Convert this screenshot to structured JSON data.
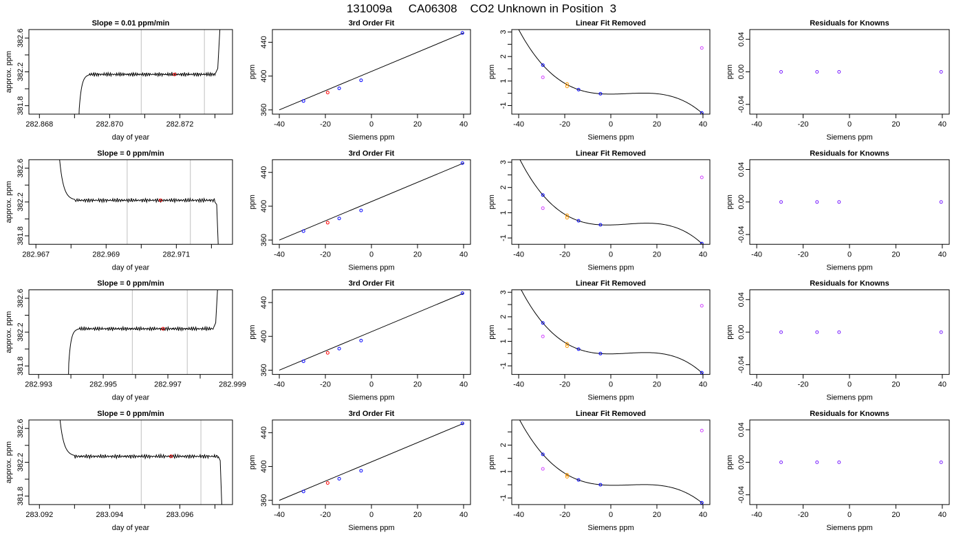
{
  "title": "131009a     CA06308    CO2 Unknown in Position  3",
  "chart_data": {
    "type": "multi-panel",
    "rows": [
      {
        "trace": {
          "title": "Slope =  0.01  ppm/min",
          "xlabel": "day of year",
          "ylabel": "approx. ppm",
          "xlim": [
            282.8677,
            282.8735
          ],
          "ylim": [
            381.7,
            382.7
          ],
          "xticks": [
            282.868,
            282.87,
            282.872
          ],
          "xtick_labels": [
            "282.868",
            "282.870",
            "282.872"
          ],
          "yticks": [
            381.8,
            382.2,
            382.6
          ],
          "ytick_labels": [
            "381.8",
            "382.2",
            "382.6"
          ],
          "flat_start": 282.8694,
          "flat_end": 282.873,
          "level": 382.17,
          "vlines": [
            282.8709,
            282.8727
          ],
          "marker": [
            282.87185,
            382.17
          ],
          "rise_before": true,
          "rise_after": true,
          "fall_after": false
        },
        "fit": {
          "title": "3rd Order Fit",
          "xlabel": "Siemens ppm",
          "ylabel": "ppm",
          "xlim": [
            -43,
            43
          ],
          "ylim": [
            355,
            455
          ],
          "xticks": [
            -40,
            -20,
            0,
            20,
            40
          ],
          "yticks": [
            360,
            400,
            440
          ],
          "points": [
            [
              -29.5,
              370.5
            ],
            [
              -14,
              385.5
            ],
            [
              -4.5,
              395
            ],
            [
              39.5,
              451
            ]
          ],
          "red_point": [
            -19,
            380.5
          ],
          "line": [
            [
              -40,
              360
            ],
            [
              40,
              451
            ]
          ]
        },
        "linear_removed": {
          "title": "Linear Fit Removed",
          "xlabel": "Siemens ppm",
          "ylabel": "ppm",
          "xlim": [
            -43,
            43
          ],
          "ylim": [
            -0.85,
            2.6
          ],
          "xticks": [
            -40,
            -20,
            0,
            20,
            40
          ],
          "yticks": [
            -0.5,
            0.5,
            1.5,
            2.5
          ],
          "blue": [
            [
              -29.5,
              1.15
            ],
            [
              -14,
              0.15
            ],
            [
              -4.5,
              -0.02
            ],
            [
              39.5,
              -0.8
            ]
          ],
          "magenta": [
            [
              -29.5,
              0.65
            ],
            [
              39.5,
              1.85
            ]
          ],
          "orange": [
            [
              -19,
              0.38
            ],
            [
              -19,
              0.28
            ]
          ]
        },
        "residuals": {
          "title": "Residuals for Knowns",
          "xlabel": "Siemens ppm",
          "ylabel": "ppm",
          "xlim": [
            -43,
            43
          ],
          "ylim": [
            -0.052,
            0.052
          ],
          "xticks": [
            -40,
            -20,
            0,
            20,
            40
          ],
          "yticks": [
            -0.04,
            0.0,
            0.04
          ],
          "ytick_labels": [
            "-0.04",
            "0.00",
            "0.04"
          ],
          "points": [
            [
              -29.5,
              0
            ],
            [
              -14,
              0
            ],
            [
              -4.5,
              0
            ],
            [
              39.5,
              0
            ]
          ]
        }
      },
      {
        "trace": {
          "title": "Slope =  0  ppm/min",
          "xlabel": "day of year",
          "ylabel": "approx. ppm",
          "xlim": [
            282.9668,
            282.9726
          ],
          "ylim": [
            381.7,
            382.7
          ],
          "xticks": [
            282.967,
            282.969,
            282.971
          ],
          "xtick_labels": [
            "282.967",
            "282.969",
            "282.971"
          ],
          "yticks": [
            381.8,
            382.2,
            382.6
          ],
          "ytick_labels": [
            "381.8",
            "382.2",
            "382.6"
          ],
          "flat_start": 282.9681,
          "flat_end": 282.9721,
          "level": 382.22,
          "vlines": [
            282.9696,
            282.9714
          ],
          "marker": [
            282.97055,
            382.22
          ],
          "rise_before": false,
          "rise_after": false,
          "fall_after": true
        },
        "fit": {
          "title": "3rd Order Fit",
          "xlabel": "Siemens ppm",
          "ylabel": "ppm",
          "xlim": [
            -43,
            43
          ],
          "ylim": [
            355,
            455
          ],
          "xticks": [
            -40,
            -20,
            0,
            20,
            40
          ],
          "yticks": [
            360,
            400,
            440
          ],
          "points": [
            [
              -29.5,
              370.5
            ],
            [
              -14,
              385.5
            ],
            [
              -4.5,
              395
            ],
            [
              39.5,
              451
            ]
          ],
          "red_point": [
            -19,
            380.5
          ],
          "line": [
            [
              -40,
              360
            ],
            [
              40,
              451
            ]
          ]
        },
        "linear_removed": {
          "title": "Linear Fit Removed",
          "xlabel": "Siemens ppm",
          "ylabel": "ppm",
          "xlim": [
            -43,
            43
          ],
          "ylim": [
            -0.75,
            2.6
          ],
          "xticks": [
            -40,
            -20,
            0,
            20,
            40
          ],
          "yticks": [
            -0.5,
            0.5,
            1.5,
            2.5
          ],
          "blue": [
            [
              -29.5,
              1.2
            ],
            [
              -14,
              0.18
            ],
            [
              -4.5,
              0.02
            ],
            [
              39.5,
              -0.72
            ]
          ],
          "magenta": [
            [
              -29.5,
              0.68
            ],
            [
              39.5,
              1.9
            ]
          ],
          "orange": [
            [
              -19,
              0.4
            ],
            [
              -19,
              0.3
            ]
          ]
        },
        "residuals": {
          "title": "Residuals for Knowns",
          "xlabel": "Siemens ppm",
          "ylabel": "ppm",
          "xlim": [
            -43,
            43
          ],
          "ylim": [
            -0.052,
            0.052
          ],
          "xticks": [
            -40,
            -20,
            0,
            20,
            40
          ],
          "yticks": [
            -0.04,
            0.0,
            0.04
          ],
          "ytick_labels": [
            "-0.04",
            "0.00",
            "0.04"
          ],
          "points": [
            [
              -29.5,
              0
            ],
            [
              -14,
              0
            ],
            [
              -4.5,
              0
            ],
            [
              39.5,
              0
            ]
          ]
        }
      },
      {
        "trace": {
          "title": "Slope =  0  ppm/min",
          "xlabel": "day of year",
          "ylabel": "approx. ppm",
          "xlim": [
            282.9927,
            282.999
          ],
          "ylim": [
            381.7,
            382.7
          ],
          "xticks": [
            282.993,
            282.995,
            282.997,
            282.999
          ],
          "xtick_labels": [
            "282.993",
            "282.995",
            "282.997",
            "282.999"
          ],
          "yticks": [
            381.8,
            382.2,
            382.6
          ],
          "ytick_labels": [
            "381.8",
            "382.2",
            "382.6"
          ],
          "flat_start": 282.9942,
          "flat_end": 282.9984,
          "level": 382.24,
          "vlines": [
            282.9959,
            282.9976
          ],
          "marker": [
            282.99685,
            382.24
          ],
          "rise_before": true,
          "rise_after": true,
          "fall_after": false
        },
        "fit": {
          "title": "3rd Order Fit",
          "xlabel": "Siemens ppm",
          "ylabel": "ppm",
          "xlim": [
            -43,
            43
          ],
          "ylim": [
            355,
            455
          ],
          "xticks": [
            -40,
            -20,
            0,
            20,
            40
          ],
          "yticks": [
            360,
            400,
            440
          ],
          "points": [
            [
              -29.5,
              370.5
            ],
            [
              -14,
              385.5
            ],
            [
              -4.5,
              395
            ],
            [
              39.5,
              451
            ]
          ],
          "red_point": [
            -19,
            380.5
          ],
          "line": [
            [
              -40,
              360
            ],
            [
              40,
              451
            ]
          ]
        },
        "linear_removed": {
          "title": "Linear Fit Removed",
          "xlabel": "Siemens ppm",
          "ylabel": "ppm",
          "xlim": [
            -43,
            43
          ],
          "ylim": [
            -0.85,
            2.6
          ],
          "xticks": [
            -40,
            -20,
            0,
            20,
            40
          ],
          "yticks": [
            -0.5,
            0.5,
            1.5,
            2.5
          ],
          "blue": [
            [
              -29.5,
              1.25
            ],
            [
              -14,
              0.18
            ],
            [
              -4.5,
              0.0
            ],
            [
              39.5,
              -0.78
            ]
          ],
          "magenta": [
            [
              -29.5,
              0.7
            ],
            [
              39.5,
              1.95
            ]
          ],
          "orange": [
            [
              -19,
              0.4
            ],
            [
              -19,
              0.3
            ]
          ]
        },
        "residuals": {
          "title": "Residuals for Knowns",
          "xlabel": "Siemens ppm",
          "ylabel": "ppm",
          "xlim": [
            -43,
            43
          ],
          "ylim": [
            -0.052,
            0.052
          ],
          "xticks": [
            -40,
            -20,
            0,
            20,
            40
          ],
          "yticks": [
            -0.04,
            0.0,
            0.04
          ],
          "ytick_labels": [
            "-0.04",
            "0.00",
            "0.04"
          ],
          "points": [
            [
              -29.5,
              0
            ],
            [
              -14,
              0
            ],
            [
              -4.5,
              0
            ],
            [
              39.5,
              0
            ]
          ]
        }
      },
      {
        "trace": {
          "title": "Slope =  0  ppm/min",
          "xlabel": "day of year",
          "ylabel": "approx. ppm",
          "xlim": [
            283.0917,
            283.0975
          ],
          "ylim": [
            381.7,
            382.7
          ],
          "xticks": [
            283.092,
            283.094,
            283.096
          ],
          "xtick_labels": [
            "283.092",
            "283.094",
            "283.096"
          ],
          "yticks": [
            381.8,
            382.2,
            382.6
          ],
          "ytick_labels": [
            "381.8",
            "382.2",
            "382.6"
          ],
          "flat_start": 283.093,
          "flat_end": 283.0971,
          "level": 382.27,
          "vlines": [
            283.0949,
            283.0966
          ],
          "marker": [
            283.09575,
            382.27
          ],
          "rise_before": false,
          "rise_after": false,
          "fall_after": true
        },
        "fit": {
          "title": "3rd Order Fit",
          "xlabel": "Siemens ppm",
          "ylabel": "ppm",
          "xlim": [
            -43,
            43
          ],
          "ylim": [
            355,
            455
          ],
          "xticks": [
            -40,
            -20,
            0,
            20,
            40
          ],
          "yticks": [
            360,
            400,
            440
          ],
          "points": [
            [
              -29.5,
              370.5
            ],
            [
              -14,
              385.5
            ],
            [
              -4.5,
              395
            ],
            [
              39.5,
              451
            ]
          ],
          "red_point": [
            -19,
            380.5
          ],
          "line": [
            [
              -40,
              360
            ],
            [
              40,
              451
            ]
          ]
        },
        "linear_removed": {
          "title": "Linear Fit Removed",
          "xlabel": "Siemens ppm",
          "ylabel": "ppm",
          "xlim": [
            -43,
            43
          ],
          "ylim": [
            -0.75,
            2.45
          ],
          "xticks": [
            -40,
            -20,
            0,
            20,
            40
          ],
          "yticks": [
            -0.5,
            0.5,
            1.5
          ],
          "blue": [
            [
              -29.5,
              1.15
            ],
            [
              -14,
              0.18
            ],
            [
              -4.5,
              0.0
            ],
            [
              39.5,
              -0.68
            ]
          ],
          "magenta": [
            [
              -29.5,
              0.6
            ],
            [
              39.5,
              2.05
            ]
          ],
          "orange": [
            [
              -19,
              0.38
            ],
            [
              -19,
              0.3
            ]
          ]
        },
        "residuals": {
          "title": "Residuals for Knowns",
          "xlabel": "Siemens ppm",
          "ylabel": "ppm",
          "xlim": [
            -43,
            43
          ],
          "ylim": [
            -0.052,
            0.052
          ],
          "xticks": [
            -40,
            -20,
            0,
            20,
            40
          ],
          "yticks": [
            -0.04,
            0.0,
            0.04
          ],
          "ytick_labels": [
            "-0.04",
            "0.00",
            "0.04"
          ],
          "points": [
            [
              -29.5,
              0
            ],
            [
              -14,
              0
            ],
            [
              -4.5,
              0
            ],
            [
              39.5,
              0
            ]
          ]
        }
      }
    ]
  },
  "colors": {
    "axis": "#000000",
    "vline": "#bfbfbf",
    "marker_red": "#ff0000",
    "point_blue": "#0000ff",
    "point_magenta": "#d040ff",
    "point_orange": "#ff9900"
  }
}
